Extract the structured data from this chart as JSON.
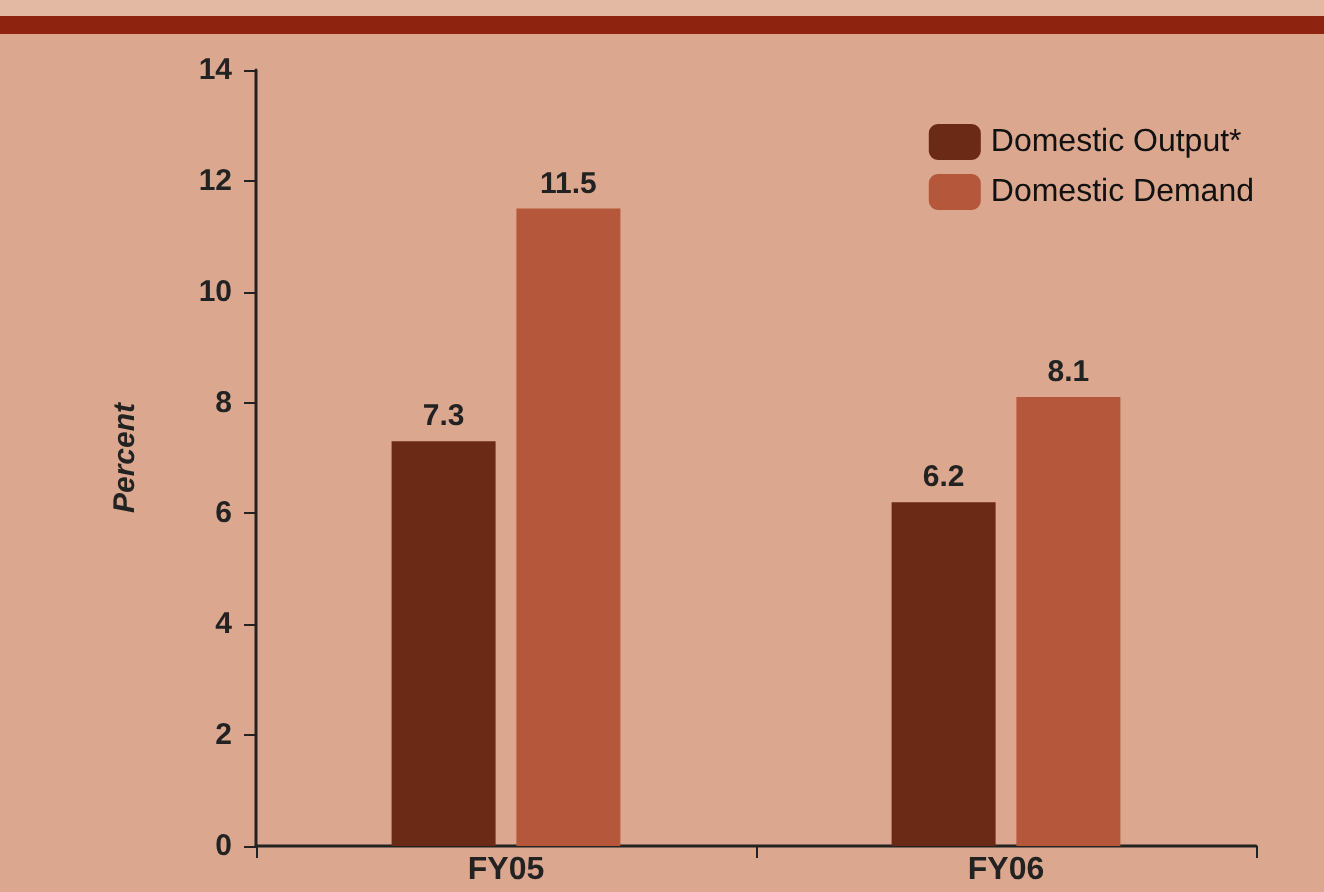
{
  "chart_data": {
    "type": "bar",
    "ylabel": "Percent",
    "categories": [
      "FY05",
      "FY06"
    ],
    "series": [
      {
        "name": "Domestic Output*",
        "color": "#6b2a16",
        "values": [
          7.3,
          6.2
        ]
      },
      {
        "name": "Domestic Demand",
        "color": "#b5573b",
        "values": [
          11.5,
          8.1
        ]
      }
    ],
    "ylim": [
      0,
      14
    ],
    "yticks": [
      0,
      2,
      4,
      6,
      8,
      10,
      12,
      14
    ],
    "data_labels": true,
    "legend": "top right",
    "grid": false
  }
}
